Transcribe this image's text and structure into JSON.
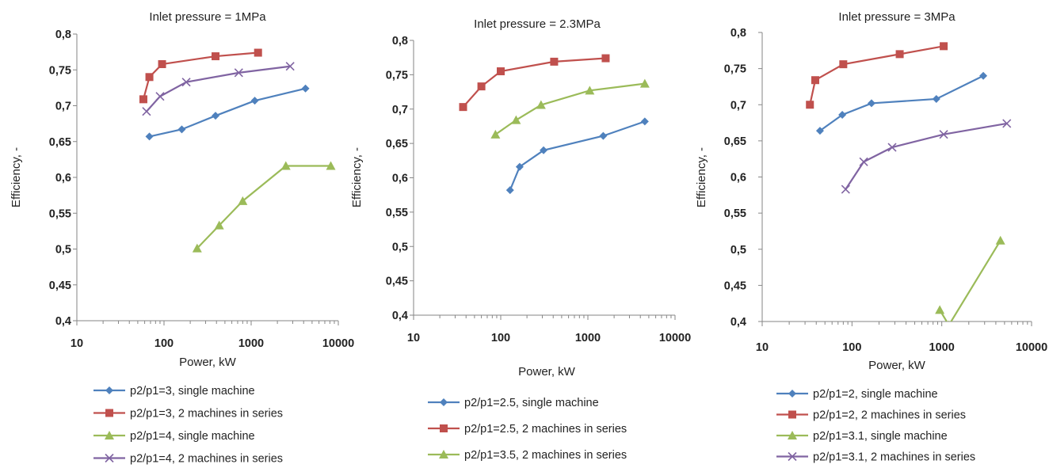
{
  "colors": {
    "blue": "#4F81BD",
    "red": "#C0504D",
    "green": "#9BBB59",
    "purple": "#8064A2"
  },
  "chart_data": [
    {
      "type": "line",
      "title": "Inlet pressure = 1MPa",
      "xlabel": "Power, kW",
      "ylabel": "Efficiency, -",
      "xscale": "log",
      "xlim": [
        10,
        10000
      ],
      "ylim": [
        0.4,
        0.8
      ],
      "xticks": [
        "10",
        "100",
        "1000",
        "10000"
      ],
      "yticks": [
        "0,4",
        "0,45",
        "0,5",
        "0,55",
        "0,6",
        "0,65",
        "0,7",
        "0,75",
        "0,8"
      ],
      "grid": false,
      "legend": "below",
      "series": [
        {
          "name": "p2/p1=3, single machine",
          "color": "blue",
          "marker": "diamond",
          "x": [
            68,
            160,
            390,
            1100,
            4200
          ],
          "y": [
            0.657,
            0.667,
            0.686,
            0.707,
            0.724
          ]
        },
        {
          "name": "p2/p1=3, 2 machines in series",
          "color": "red",
          "marker": "square",
          "x": [
            58,
            68,
            95,
            390,
            1200
          ],
          "y": [
            0.709,
            0.74,
            0.758,
            0.769,
            0.774
          ]
        },
        {
          "name": "p2/p1=4, single machine",
          "color": "green",
          "marker": "triangle",
          "x": [
            240,
            430,
            800,
            2500,
            8200
          ],
          "y": [
            0.501,
            0.533,
            0.567,
            0.616,
            0.616
          ]
        },
        {
          "name": "p2/p1=4, 2 machines in series",
          "color": "purple",
          "marker": "x",
          "x": [
            63,
            90,
            180,
            720,
            2800
          ],
          "y": [
            0.692,
            0.713,
            0.733,
            0.746,
            0.755
          ]
        }
      ]
    },
    {
      "type": "line",
      "title": "Inlet pressure = 2.3MPa",
      "xlabel": "Power, kW",
      "ylabel": "Efficiency, -",
      "xscale": "log",
      "xlim": [
        10,
        10000
      ],
      "ylim": [
        0.4,
        0.8
      ],
      "xticks": [
        "10",
        "100",
        "1000",
        "10000"
      ],
      "yticks": [
        "0,4",
        "0,45",
        "0,5",
        "0,55",
        "0,6",
        "0,65",
        "0,7",
        "0,75",
        "0,8"
      ],
      "grid": false,
      "legend": "below",
      "series": [
        {
          "name": "p2/p1=2.5, single machine",
          "color": "blue",
          "marker": "diamond",
          "x": [
            128,
            165,
            310,
            1500,
            4500
          ],
          "y": [
            0.582,
            0.616,
            0.64,
            0.661,
            0.682
          ]
        },
        {
          "name": "p2/p1=2.5, 2 machines in series",
          "color": "red",
          "marker": "square",
          "x": [
            37,
            60,
            100,
            410,
            1600
          ],
          "y": [
            0.703,
            0.733,
            0.755,
            0.769,
            0.774
          ]
        },
        {
          "name": "p2/p1=3.5, 2 machines in series",
          "color": "green",
          "marker": "triangle",
          "x": [
            87,
            150,
            290,
            1050,
            4500
          ],
          "y": [
            0.663,
            0.684,
            0.706,
            0.727,
            0.737
          ]
        }
      ]
    },
    {
      "type": "line",
      "title": "Inlet pressure = 3MPa",
      "xlabel": "Power, kW",
      "ylabel": "Efficiency, -",
      "xscale": "log",
      "xlim": [
        10,
        10000
      ],
      "ylim": [
        0.4,
        0.8
      ],
      "xticks": [
        "10",
        "100",
        "1000",
        "10000"
      ],
      "yticks": [
        "0,4",
        "0,45",
        "0,5",
        "0,55",
        "0,6",
        "0,65",
        "0,7",
        "0,75",
        "0,8"
      ],
      "grid": false,
      "legend": "below",
      "series": [
        {
          "name": "p2/p1=2, single machine",
          "color": "blue",
          "marker": "diamond",
          "x": [
            44,
            78,
            165,
            870,
            2900
          ],
          "y": [
            0.664,
            0.686,
            0.702,
            0.708,
            0.74
          ]
        },
        {
          "name": "p2/p1=2, 2 machines in series",
          "color": "red",
          "marker": "square",
          "x": [
            34,
            39,
            80,
            340,
            1050
          ],
          "y": [
            0.7,
            0.734,
            0.756,
            0.77,
            0.781
          ]
        },
        {
          "name": "p2/p1=3.1, single machine",
          "color": "green",
          "marker": "triangle",
          "x": [
            950,
            1200,
            4500
          ],
          "y": [
            0.416,
            0.395,
            0.512
          ]
        },
        {
          "name": "p2/p1=3.1, 2 machines in series",
          "color": "purple",
          "marker": "x",
          "x": [
            85,
            135,
            280,
            1050,
            5300
          ],
          "y": [
            0.583,
            0.621,
            0.641,
            0.659,
            0.674
          ]
        }
      ]
    }
  ]
}
